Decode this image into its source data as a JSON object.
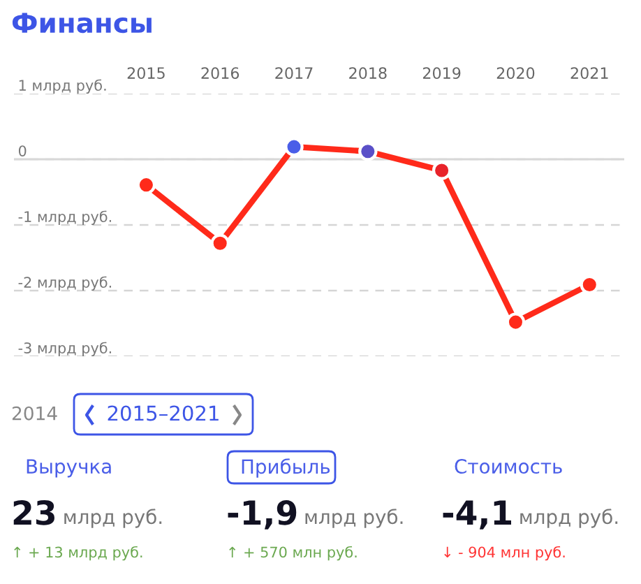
{
  "chart_data": {
    "type": "line",
    "title": "Финансы",
    "categories": [
      "2015",
      "2016",
      "2017",
      "2018",
      "2019",
      "2020",
      "2021"
    ],
    "series": [
      {
        "color": "#ff2a1a",
        "colors": [
          "#ff2a1a",
          "#ff2a1a",
          "#4a5ee8",
          "#5a50c8",
          "#e8232a",
          "#ff2a1a",
          "#ff2a1a"
        ],
        "values": [
          -0.39,
          -1.28,
          0.19,
          0.12,
          -0.17,
          -2.48,
          -1.91
        ]
      }
    ],
    "ylim": [
      -3,
      1
    ],
    "yticks": [
      {
        "value": 1,
        "label": "1 млрд руб."
      },
      0,
      {
        "value": -1,
        "label": "-1 млрд руб."
      },
      {
        "value": -2,
        "label": "-2 млрд руб."
      },
      {
        "value": -3,
        "label": "-3 млрд руб."
      }
    ],
    "grid": "y",
    "marker": "circle",
    "line_style": "solid",
    "ref_lines": [
      {
        "axis": "y",
        "value": 0,
        "color": "#d8d8d8",
        "line_style": "solid"
      }
    ],
    "annotations": [
      "2014",
      "2015–2021",
      "Выручка",
      "Прибыль",
      "Стоимость",
      "23",
      "млрд руб.",
      "-1,9",
      "млрд руб.",
      "-4,1",
      "млрд руб.",
      "↑ + 13 млрд руб.",
      "↑ + 570 млн руб.",
      "↓ - 904 млн руб."
    ]
  }
}
